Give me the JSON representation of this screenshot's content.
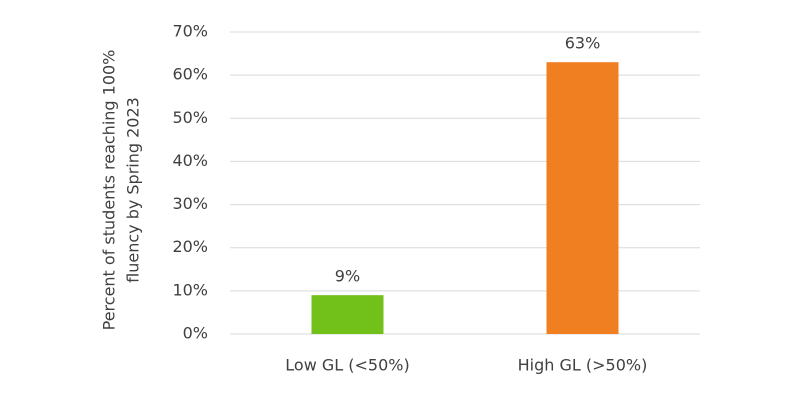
{
  "chart_data": {
    "type": "bar",
    "ylabel": [
      "Percent of students reaching 100%",
      "fluency by Spring 2023"
    ],
    "categories": [
      "Low GL (<50%)",
      "High GL (>50%)"
    ],
    "values": [
      9,
      63
    ],
    "value_labels": [
      "9%",
      "63%"
    ],
    "colors": [
      "#72c11a",
      "#f07f22"
    ],
    "ylim": [
      0,
      70
    ],
    "yticks": [
      {
        "value": 0,
        "label": "0%"
      },
      {
        "value": 10,
        "label": "10%"
      },
      {
        "value": 20,
        "label": "20%"
      },
      {
        "value": 30,
        "label": "30%"
      },
      {
        "value": 40,
        "label": "40%"
      },
      {
        "value": 50,
        "label": "50%"
      },
      {
        "value": 60,
        "label": "60%"
      },
      {
        "value": 70,
        "label": "70%"
      }
    ],
    "grid": true
  }
}
